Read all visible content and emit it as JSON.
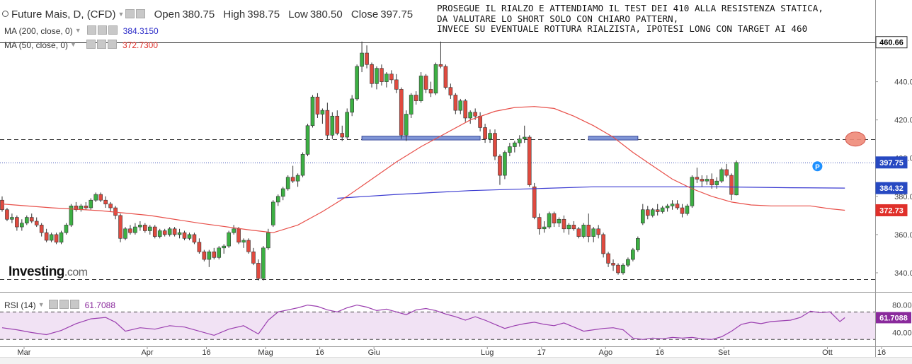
{
  "header": {
    "title": "Future Mais, D, (CFD)",
    "open_label": "Open",
    "open": "380.75",
    "high_label": "High",
    "high": "398.75",
    "low_label": "Low",
    "low": "380.50",
    "close_label": "Close",
    "close": "397.75",
    "ma200_label": "MA (200, close, 0)",
    "ma200_value": "384.3150",
    "ma50_label": "MA (50, close, 0)",
    "ma50_value": "372.7300",
    "rsi_label": "RSI (14)",
    "rsi_value": "61.7088"
  },
  "annotation": {
    "line1": "PROSEGUE IL RIALZO E ATTENDIAMO IL TEST DEI 410 ALLA RESISTENZA STATICA,",
    "line2": "DA VALUTARE LO SHORT SOLO CON CHIARO PATTERN,",
    "line3": "INVECE SU EVENTUALE ROTTURA RIALZISTA, IPOTESI LONG CON TARGET AI 460"
  },
  "logo": {
    "main": "Investing",
    "suffix": ".com"
  },
  "marker_label": "P",
  "colors": {
    "up": "#3cb043",
    "down": "#e04a3f",
    "ma50": "#e8504a",
    "ma200": "#3b3bd1",
    "rsi": "#9b3fb0",
    "rsi_fill": "#f1e2f4",
    "zone_fill": "#7f95d6",
    "zone_stroke": "#3b4b9a"
  },
  "chart_data": {
    "type": "candlestick",
    "y_axis_ticks": [
      340,
      360,
      380,
      400,
      420,
      440
    ],
    "y_axis_tick_labels": [
      "340.00",
      "360.00",
      "380.00",
      "400.00",
      "420.00",
      "440.00"
    ],
    "ylim": [
      330,
      465
    ],
    "x_tick_labels": [
      "Mar",
      "Apr",
      "16",
      "Mag",
      "16",
      "Giu",
      "Lug",
      "17",
      "Ago",
      "16",
      "Set",
      "Ott",
      "16"
    ],
    "x_tick_bar_index": [
      0,
      25,
      37,
      49,
      60,
      71,
      94,
      105,
      118,
      129,
      142,
      163,
      174
    ],
    "price_labels": [
      {
        "value": 460.66,
        "text": "460.66",
        "style": "black"
      },
      {
        "value": 397.75,
        "text": "397.75",
        "style": "blue"
      },
      {
        "value": 384.32,
        "text": "384.32",
        "style": "blue"
      },
      {
        "value": 372.73,
        "text": "372.73",
        "style": "red"
      }
    ],
    "horizontal_lines": [
      {
        "value": 460.66,
        "style": "solid"
      },
      {
        "value": 410.0,
        "style": "dashed"
      },
      {
        "value": 397.75,
        "style": "dotted"
      },
      {
        "value": 336.5,
        "style": "dashed"
      }
    ],
    "zones": [
      {
        "from_bar": 73,
        "to_bar": 97,
        "low": 409.5,
        "high": 411.5
      },
      {
        "from_bar": 119,
        "to_bar": 129,
        "low": 409.5,
        "high": 411.5
      }
    ],
    "target_marker": {
      "bar": 171,
      "value": 410
    },
    "pivot_marker": {
      "bar": 165,
      "value": 395
    },
    "candles": [
      [
        378.0,
        380.0,
        372.0,
        373.0
      ],
      [
        373.0,
        374.0,
        367.0,
        368.0
      ],
      [
        368.0,
        371.0,
        366.0,
        369.0
      ],
      [
        369.0,
        370.0,
        362.0,
        364.0
      ],
      [
        364.0,
        368.0,
        362.0,
        366.0
      ],
      [
        366.0,
        370.0,
        365.0,
        369.0
      ],
      [
        369.0,
        371.0,
        366.0,
        367.0
      ],
      [
        367.0,
        369.0,
        364.0,
        365.0
      ],
      [
        365.0,
        366.0,
        359.0,
        361.0
      ],
      [
        361.0,
        363.0,
        356.0,
        357.0
      ],
      [
        357.0,
        361.0,
        356.0,
        360.0
      ],
      [
        360.0,
        361.0,
        355.0,
        356.0
      ],
      [
        356.0,
        362.0,
        355.0,
        361.0
      ],
      [
        361.0,
        366.0,
        360.0,
        365.0
      ],
      [
        365.0,
        376.0,
        364.0,
        375.0
      ],
      [
        375.0,
        377.0,
        372.0,
        373.0
      ],
      [
        373.0,
        376.0,
        372.0,
        375.0
      ],
      [
        375.0,
        377.0,
        373.0,
        374.0
      ],
      [
        374.0,
        379.0,
        373.0,
        378.0
      ],
      [
        378.0,
        382.0,
        377.0,
        381.0
      ],
      [
        381.0,
        382.0,
        377.0,
        378.0
      ],
      [
        378.0,
        380.0,
        374.0,
        376.0
      ],
      [
        376.0,
        377.0,
        372.0,
        374.0
      ],
      [
        374.0,
        375.0,
        368.0,
        370.0
      ],
      [
        370.0,
        371.0,
        356.0,
        358.0
      ],
      [
        358.0,
        364.0,
        357.0,
        363.0
      ],
      [
        363.0,
        365.0,
        360.0,
        361.0
      ],
      [
        361.0,
        366.0,
        360.0,
        364.0
      ],
      [
        364.0,
        367.0,
        362.0,
        365.0
      ],
      [
        365.0,
        366.0,
        361.0,
        362.0
      ],
      [
        362.0,
        365.0,
        360.0,
        364.0
      ],
      [
        364.0,
        365.0,
        358.0,
        359.0
      ],
      [
        359.0,
        363.0,
        358.0,
        362.0
      ],
      [
        362.0,
        363.0,
        359.0,
        360.0
      ],
      [
        360.0,
        364.0,
        359.0,
        363.0
      ],
      [
        363.0,
        364.0,
        359.0,
        360.0
      ],
      [
        360.0,
        363.0,
        358.0,
        361.0
      ],
      [
        361.0,
        362.0,
        357.0,
        358.0
      ],
      [
        358.0,
        361.0,
        357.0,
        360.0
      ],
      [
        360.0,
        361.0,
        355.0,
        356.0
      ],
      [
        356.0,
        358.0,
        350.0,
        351.0
      ],
      [
        351.0,
        352.0,
        346.0,
        347.0
      ],
      [
        347.0,
        352.0,
        343.0,
        351.0
      ],
      [
        351.0,
        353.0,
        347.0,
        348.0
      ],
      [
        348.0,
        354.0,
        347.0,
        353.0
      ],
      [
        353.0,
        355.0,
        350.0,
        354.0
      ],
      [
        354.0,
        362.0,
        353.0,
        361.0
      ],
      [
        361.0,
        365.0,
        360.0,
        363.0
      ],
      [
        363.0,
        364.0,
        355.0,
        356.0
      ],
      [
        356.0,
        358.0,
        353.0,
        357.0
      ],
      [
        357.0,
        358.0,
        350.0,
        351.0
      ],
      [
        351.0,
        353.0,
        344.0,
        345.0
      ],
      [
        345.0,
        347.0,
        336.0,
        337.0
      ],
      [
        337.0,
        354.0,
        336.0,
        353.0
      ],
      [
        353.0,
        363.0,
        352.0,
        361.0
      ],
      [
        365.0,
        378.0,
        364.0,
        377.0
      ],
      [
        377.0,
        381.0,
        375.0,
        380.0
      ],
      [
        380.0,
        385.0,
        378.0,
        384.0
      ],
      [
        384.0,
        391.0,
        383.0,
        390.0
      ],
      [
        390.0,
        396.0,
        387.0,
        388.0
      ],
      [
        388.0,
        392.0,
        385.0,
        391.0
      ],
      [
        391.0,
        403.0,
        390.0,
        402.0
      ],
      [
        402.0,
        418.0,
        401.0,
        417.0
      ],
      [
        417.0,
        433.0,
        416.0,
        432.0
      ],
      [
        432.0,
        434.0,
        421.0,
        423.0
      ],
      [
        423.0,
        426.0,
        418.0,
        425.0
      ],
      [
        425.0,
        429.0,
        410.0,
        412.0
      ],
      [
        412.0,
        424.0,
        410.0,
        422.0
      ],
      [
        422.0,
        425.0,
        412.0,
        413.0
      ],
      [
        413.0,
        417.0,
        409.0,
        411.0
      ],
      [
        411.0,
        426.0,
        410.0,
        424.0
      ],
      [
        424.0,
        433.0,
        422.0,
        431.0
      ],
      [
        431.0,
        449.0,
        430.0,
        448.0
      ],
      [
        448.0,
        461.0,
        445.0,
        455.0
      ],
      [
        455.0,
        459.0,
        447.0,
        449.0
      ],
      [
        449.0,
        450.0,
        437.0,
        439.0
      ],
      [
        439.0,
        448.0,
        436.0,
        447.0
      ],
      [
        447.0,
        449.0,
        438.0,
        440.0
      ],
      [
        440.0,
        445.0,
        437.0,
        444.0
      ],
      [
        444.0,
        446.0,
        439.0,
        441.0
      ],
      [
        441.0,
        444.0,
        434.0,
        436.0
      ],
      [
        436.0,
        437.0,
        410.0,
        412.0
      ],
      [
        412.0,
        425.0,
        409.0,
        423.0
      ],
      [
        423.0,
        434.0,
        421.0,
        433.0
      ],
      [
        433.0,
        435.0,
        428.0,
        430.0
      ],
      [
        430.0,
        445.0,
        429.0,
        443.0
      ],
      [
        443.0,
        444.0,
        434.0,
        436.0
      ],
      [
        436.0,
        440.0,
        432.0,
        434.0
      ],
      [
        434.0,
        450.0,
        433.0,
        449.0
      ],
      [
        449.0,
        461.0,
        447.0,
        448.0
      ],
      [
        448.0,
        449.0,
        436.0,
        437.0
      ],
      [
        437.0,
        439.0,
        431.0,
        433.0
      ],
      [
        433.0,
        434.0,
        423.0,
        425.0
      ],
      [
        425.0,
        431.0,
        423.0,
        430.0
      ],
      [
        430.0,
        431.0,
        419.0,
        421.0
      ],
      [
        421.0,
        425.0,
        418.0,
        424.0
      ],
      [
        424.0,
        426.0,
        420.0,
        422.0
      ],
      [
        422.0,
        424.0,
        414.0,
        416.0
      ],
      [
        416.0,
        418.0,
        408.0,
        410.0
      ],
      [
        410.0,
        415.0,
        408.0,
        413.0
      ],
      [
        413.0,
        415.0,
        399.0,
        401.0
      ],
      [
        401.0,
        402.0,
        386.0,
        391.0
      ],
      [
        391.0,
        404.0,
        389.0,
        403.0
      ],
      [
        403.0,
        408.0,
        401.0,
        406.0
      ],
      [
        406.0,
        409.0,
        403.0,
        408.0
      ],
      [
        408.0,
        412.0,
        406.0,
        410.0
      ],
      [
        410.0,
        417.0,
        408.0,
        411.0
      ],
      [
        411.0,
        412.0,
        385.0,
        386.0
      ],
      [
        385.0,
        387.0,
        368.0,
        369.0
      ],
      [
        369.0,
        371.0,
        360.0,
        363.0
      ],
      [
        363.0,
        367.0,
        361.0,
        364.0
      ],
      [
        364.0,
        372.0,
        363.0,
        371.0
      ],
      [
        371.0,
        372.0,
        364.0,
        366.0
      ],
      [
        366.0,
        369.0,
        364.0,
        368.0
      ],
      [
        368.0,
        370.0,
        361.0,
        363.0
      ],
      [
        363.0,
        366.0,
        360.0,
        365.0
      ],
      [
        365.0,
        367.0,
        362.0,
        363.0
      ],
      [
        363.0,
        364.0,
        358.0,
        359.0
      ],
      [
        359.0,
        366.0,
        358.0,
        365.0
      ],
      [
        365.0,
        371.0,
        356.0,
        359.0
      ],
      [
        359.0,
        364.0,
        356.0,
        363.0
      ],
      [
        363.0,
        365.0,
        358.0,
        360.0
      ],
      [
        360.0,
        361.0,
        348.0,
        350.0
      ],
      [
        350.0,
        351.0,
        343.0,
        345.0
      ],
      [
        345.0,
        347.0,
        341.0,
        344.0
      ],
      [
        344.0,
        345.0,
        339.0,
        340.0
      ],
      [
        340.0,
        345.0,
        339.0,
        344.0
      ],
      [
        344.0,
        348.0,
        343.0,
        347.0
      ],
      [
        347.0,
        353.0,
        346.0,
        352.0
      ],
      [
        352.0,
        359.0,
        351.0,
        358.0
      ],
      [
        366.0,
        376.0,
        365.0,
        373.0
      ],
      [
        373.0,
        375.0,
        368.0,
        370.0
      ],
      [
        370.0,
        374.0,
        369.0,
        373.0
      ],
      [
        373.0,
        376.0,
        370.0,
        372.0
      ],
      [
        372.0,
        375.0,
        371.0,
        374.0
      ],
      [
        374.0,
        376.0,
        372.0,
        375.0
      ],
      [
        375.0,
        378.0,
        373.0,
        376.0
      ],
      [
        376.0,
        378.0,
        373.0,
        374.0
      ],
      [
        374.0,
        376.0,
        369.0,
        371.0
      ],
      [
        371.0,
        376.0,
        370.0,
        375.0
      ],
      [
        375.0,
        391.0,
        374.0,
        390.0
      ],
      [
        390.0,
        395.0,
        387.0,
        389.0
      ],
      [
        389.0,
        391.0,
        385.0,
        388.0
      ],
      [
        388.0,
        391.0,
        386.0,
        389.0
      ],
      [
        389.0,
        392.0,
        384.0,
        386.0
      ],
      [
        386.0,
        390.0,
        384.0,
        388.0
      ],
      [
        388.0,
        395.0,
        387.0,
        394.0
      ],
      [
        394.0,
        397.0,
        390.0,
        391.0
      ],
      [
        391.0,
        392.0,
        378.0,
        381.0
      ],
      [
        380.75,
        398.75,
        380.5,
        397.75
      ]
    ],
    "ma50": [
      [
        0,
        376.0
      ],
      [
        10,
        374.0
      ],
      [
        20,
        372.5
      ],
      [
        30,
        370.0
      ],
      [
        40,
        366.0
      ],
      [
        50,
        362.5
      ],
      [
        55,
        361.0
      ],
      [
        60,
        365.0
      ],
      [
        65,
        372.0
      ],
      [
        70,
        380.0
      ],
      [
        75,
        389.0
      ],
      [
        80,
        398.0
      ],
      [
        85,
        406.0
      ],
      [
        90,
        413.0
      ],
      [
        95,
        420.0
      ],
      [
        100,
        424.5
      ],
      [
        104,
        426.5
      ],
      [
        108,
        427.0
      ],
      [
        112,
        426.0
      ],
      [
        116,
        422.0
      ],
      [
        120,
        417.0
      ],
      [
        124,
        411.0
      ],
      [
        128,
        403.0
      ],
      [
        132,
        396.0
      ],
      [
        136,
        389.0
      ],
      [
        140,
        384.0
      ],
      [
        144,
        380.0
      ],
      [
        148,
        377.0
      ],
      [
        152,
        375.5
      ],
      [
        156,
        375.0
      ],
      [
        160,
        375.0
      ],
      [
        164,
        375.0
      ],
      [
        168,
        373.5
      ],
      [
        171,
        372.73
      ]
    ],
    "ma200": [
      [
        68,
        379.0
      ],
      [
        80,
        381.0
      ],
      [
        95,
        383.0
      ],
      [
        110,
        384.2
      ],
      [
        120,
        385.0
      ],
      [
        130,
        385.0
      ],
      [
        145,
        385.0
      ],
      [
        160,
        384.5
      ],
      [
        171,
        384.32
      ]
    ],
    "rsi_ticks": [
      40,
      80
    ],
    "rsi_tick_labels": [
      "40.0000",
      "80.0000"
    ],
    "rsi_ylim": [
      20,
      95
    ],
    "rsi_guides": [
      30,
      70
    ],
    "rsi": [
      [
        0,
        47
      ],
      [
        3,
        44
      ],
      [
        6,
        40
      ],
      [
        9,
        37
      ],
      [
        12,
        43
      ],
      [
        15,
        53
      ],
      [
        18,
        60
      ],
      [
        21,
        62
      ],
      [
        23,
        55
      ],
      [
        25,
        42
      ],
      [
        28,
        47
      ],
      [
        31,
        45
      ],
      [
        34,
        50
      ],
      [
        37,
        48
      ],
      [
        40,
        42
      ],
      [
        43,
        36
      ],
      [
        46,
        45
      ],
      [
        49,
        50
      ],
      [
        52,
        38
      ],
      [
        54,
        58
      ],
      [
        56,
        70
      ],
      [
        58,
        73
      ],
      [
        60,
        76
      ],
      [
        62,
        80
      ],
      [
        64,
        78
      ],
      [
        66,
        73
      ],
      [
        68,
        70
      ],
      [
        70,
        76
      ],
      [
        72,
        80
      ],
      [
        74,
        77
      ],
      [
        76,
        72
      ],
      [
        78,
        74
      ],
      [
        80,
        70
      ],
      [
        82,
        66
      ],
      [
        84,
        73
      ],
      [
        86,
        75
      ],
      [
        88,
        72
      ],
      [
        90,
        67
      ],
      [
        92,
        63
      ],
      [
        94,
        58
      ],
      [
        96,
        63
      ],
      [
        98,
        58
      ],
      [
        100,
        52
      ],
      [
        102,
        46
      ],
      [
        104,
        50
      ],
      [
        106,
        53
      ],
      [
        108,
        55
      ],
      [
        110,
        52
      ],
      [
        112,
        50
      ],
      [
        114,
        54
      ],
      [
        116,
        48
      ],
      [
        118,
        42
      ],
      [
        120,
        44
      ],
      [
        122,
        46
      ],
      [
        124,
        47
      ],
      [
        126,
        44
      ],
      [
        128,
        32
      ],
      [
        130,
        30
      ],
      [
        132,
        32
      ],
      [
        134,
        31
      ],
      [
        136,
        33
      ],
      [
        138,
        32
      ],
      [
        140,
        33
      ],
      [
        142,
        31
      ],
      [
        144,
        30
      ],
      [
        146,
        34
      ],
      [
        148,
        42
      ],
      [
        150,
        52
      ],
      [
        152,
        55
      ],
      [
        154,
        53
      ],
      [
        156,
        56
      ],
      [
        158,
        57
      ],
      [
        160,
        58
      ],
      [
        162,
        62
      ],
      [
        164,
        71
      ],
      [
        166,
        69
      ],
      [
        168,
        70
      ],
      [
        169,
        63
      ],
      [
        170,
        56
      ],
      [
        171,
        61.7
      ]
    ]
  }
}
